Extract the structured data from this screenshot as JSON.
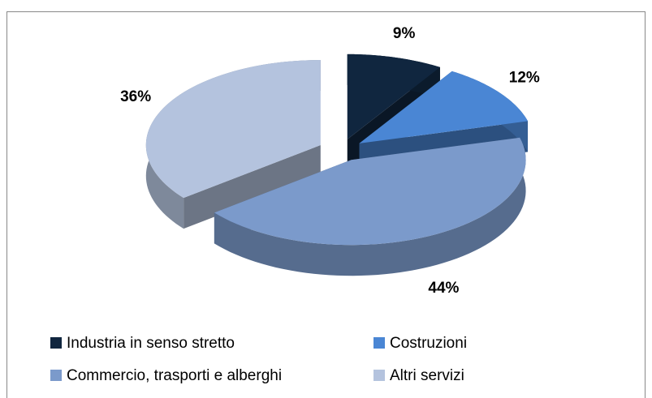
{
  "chart_data": {
    "type": "pie",
    "categories": [
      "Industria in senso stretto",
      "Costruzioni",
      "Commercio, trasporti e alberghi",
      "Altri servizi"
    ],
    "values": [
      9,
      12,
      44,
      36
    ],
    "value_labels": [
      "9%",
      "12%",
      "44%",
      "36%"
    ],
    "colors": [
      "#10263f",
      "#4a86d4",
      "#7b9acb",
      "#b4c3de"
    ],
    "legend": "bottom"
  }
}
